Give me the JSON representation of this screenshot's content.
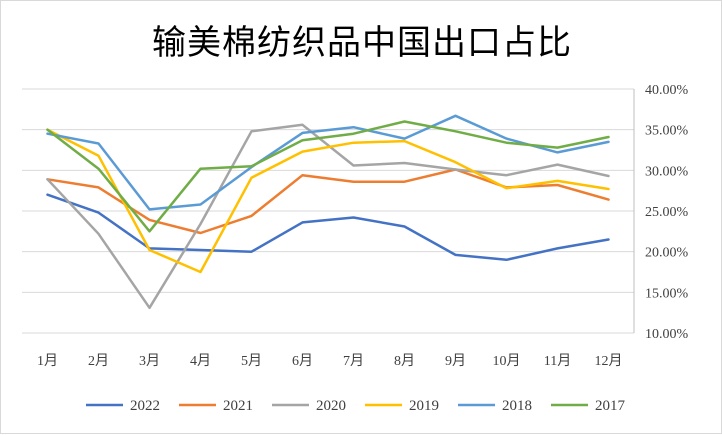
{
  "chart_data": {
    "type": "line",
    "title": "输美棉纺织品中国出口占比",
    "categories": [
      "1月",
      "2月",
      "3月",
      "4月",
      "5月",
      "6月",
      "7月",
      "8月",
      "9月",
      "10月",
      "11月",
      "12月"
    ],
    "y_axis": {
      "position": "right",
      "ylim": [
        0.1,
        0.4
      ],
      "ticks": [
        0.1,
        0.15,
        0.2,
        0.25,
        0.3,
        0.35,
        0.4
      ],
      "tick_labels": [
        "10.00%",
        "15.00%",
        "20.00%",
        "25.00%",
        "30.00%",
        "35.00%",
        "40.00%"
      ]
    },
    "grid": true,
    "legend_position": "bottom",
    "series": [
      {
        "name": "2022",
        "color": "#4472C4",
        "values": [
          0.27,
          0.248,
          0.204,
          0.202,
          0.2,
          0.236,
          0.242,
          0.231,
          0.196,
          0.19,
          0.204,
          0.215
        ]
      },
      {
        "name": "2021",
        "color": "#ED7D31",
        "values": [
          0.289,
          0.279,
          0.239,
          0.223,
          0.244,
          0.294,
          0.286,
          0.286,
          0.301,
          0.279,
          0.282,
          0.264
        ]
      },
      {
        "name": "2020",
        "color": "#A5A5A5",
        "values": [
          0.289,
          0.222,
          0.131,
          0.234,
          0.348,
          0.356,
          0.306,
          0.309,
          0.301,
          0.294,
          0.307,
          0.293
        ]
      },
      {
        "name": "2019",
        "color": "#FFC000",
        "values": [
          0.35,
          0.318,
          0.202,
          0.175,
          0.291,
          0.323,
          0.334,
          0.336,
          0.31,
          0.278,
          0.287,
          0.277
        ]
      },
      {
        "name": "2018",
        "color": "#5B9BD5",
        "values": [
          0.345,
          0.333,
          0.252,
          0.258,
          0.304,
          0.346,
          0.353,
          0.339,
          0.367,
          0.339,
          0.322,
          0.335
        ]
      },
      {
        "name": "2017",
        "color": "#70AD47",
        "values": [
          0.35,
          0.302,
          0.225,
          0.302,
          0.305,
          0.337,
          0.345,
          0.36,
          0.348,
          0.334,
          0.328,
          0.341
        ]
      }
    ]
  }
}
